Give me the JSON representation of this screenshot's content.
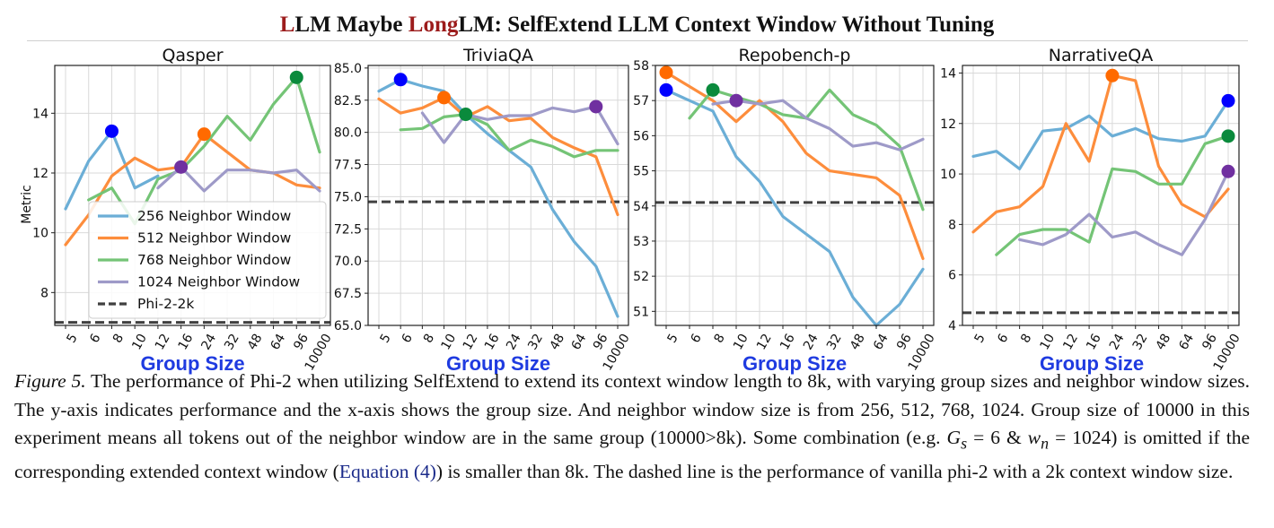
{
  "header": {
    "title_parts": [
      "L",
      "LM Maybe ",
      "Long",
      "LM: SelfExtend LLM Context Window Without Tuning"
    ]
  },
  "legend": {
    "entries": [
      "256 Neighbor Window",
      "512 Neighbor Window",
      "768 Neighbor Window",
      "1024 Neighbor Window",
      "Phi-2-2k"
    ]
  },
  "colors": {
    "w256": "#6baed6",
    "w512": "#fd8d3c",
    "w768": "#74c476",
    "w1024": "#9e9ac8",
    "baseline": "#404040",
    "dot_blue": "#0000ff",
    "dot_orange": "#ff6a00",
    "dot_green": "#0a8a3c",
    "dot_purple": "#7030a0",
    "xlabel": "#1f3be0"
  },
  "caption": {
    "fig_label": "Figure 5.",
    "text_1": " The performance of Phi-2 when utilizing SelfExtend to extend its context window length to 8k, with varying group sizes and neighbor window sizes. The y-axis indicates performance and the x-axis shows the group size. And neighbor window size is from 256, 512, 768, 1024. Group size of 10000 in this experiment means all tokens out of the neighbor window are in the same group (10000>8k). Some combination (e.g. ",
    "gs": "G",
    "gs_sub": "s",
    "mid": " = 6 & ",
    "wn": "w",
    "wn_sub": "n",
    "text_2": " = 1024) is omitted if the corresponding extended context window (",
    "eq_ref": "Equation (4)",
    "text_3": ") is smaller than 8k. The dashed line is the performance of vanilla phi-2 with a 2k context window size."
  },
  "chart_data": [
    {
      "type": "line",
      "title": "Qasper",
      "xlabel": "Group Size",
      "ylabel": "Metric",
      "categories": [
        "5",
        "6",
        "8",
        "10",
        "12",
        "16",
        "24",
        "32",
        "48",
        "64",
        "96",
        "10000"
      ],
      "ylim": [
        6.9,
        15.6
      ],
      "yticks": [
        8,
        10,
        12,
        14
      ],
      "ytick_labels": [
        "8",
        "10",
        "12",
        "14"
      ],
      "baseline": 7.0,
      "legend": "lower-left",
      "grid": true,
      "series": [
        {
          "name": "256 Neighbor Window",
          "values": [
            10.8,
            12.4,
            13.4,
            11.5,
            11.9,
            null,
            null,
            null,
            null,
            null,
            null,
            null
          ],
          "best_index": 2
        },
        {
          "name": "512 Neighbor Window",
          "values": [
            9.6,
            10.6,
            11.9,
            12.5,
            12.1,
            12.2,
            13.3,
            12.7,
            12.1,
            12.0,
            11.6,
            11.5
          ],
          "best_index": 6
        },
        {
          "name": "768 Neighbor Window",
          "values": [
            null,
            11.1,
            11.5,
            10.3,
            11.8,
            12.1,
            12.9,
            13.9,
            13.1,
            14.3,
            15.2,
            12.7
          ],
          "best_index": 10
        },
        {
          "name": "1024 Neighbor Window",
          "values": [
            null,
            null,
            null,
            null,
            11.5,
            12.2,
            11.4,
            12.1,
            12.1,
            12.0,
            12.1,
            11.4
          ],
          "best_index": 5
        }
      ]
    },
    {
      "type": "line",
      "title": "TriviaQA",
      "categories": [
        "5",
        "6",
        "8",
        "10",
        "12",
        "16",
        "24",
        "32",
        "48",
        "64",
        "96",
        "10000"
      ],
      "ylim": [
        65.0,
        85.2
      ],
      "yticks": [
        65.0,
        67.5,
        70.0,
        72.5,
        75.0,
        77.5,
        80.0,
        82.5,
        85.0
      ],
      "ytick_labels": [
        "65.0",
        "67.5",
        "70.0",
        "72.5",
        "75.0",
        "77.5",
        "80.0",
        "82.5",
        "85.0"
      ],
      "baseline": 74.6,
      "grid": true,
      "series": [
        {
          "name": "256 Neighbor Window",
          "values": [
            83.2,
            84.1,
            83.6,
            83.2,
            81.4,
            79.9,
            78.6,
            77.3,
            74.0,
            71.5,
            69.6,
            65.7
          ],
          "best_index": 1
        },
        {
          "name": "512 Neighbor Window",
          "values": [
            82.6,
            81.5,
            81.9,
            82.7,
            81.2,
            82.0,
            80.9,
            81.1,
            79.6,
            78.8,
            78.1,
            73.6
          ],
          "best_index": 3
        },
        {
          "name": "768 Neighbor Window",
          "values": [
            null,
            80.2,
            80.3,
            81.2,
            81.4,
            80.6,
            78.6,
            79.4,
            78.9,
            78.1,
            78.6,
            78.6
          ],
          "best_index": 4
        },
        {
          "name": "1024 Neighbor Window",
          "values": [
            null,
            null,
            81.5,
            79.2,
            81.4,
            81.0,
            81.3,
            81.3,
            81.9,
            81.6,
            82.0,
            79.1
          ],
          "best_index": 10
        }
      ]
    },
    {
      "type": "line",
      "title": "Repobench-p",
      "categories": [
        "5",
        "6",
        "8",
        "10",
        "12",
        "16",
        "24",
        "32",
        "48",
        "64",
        "96",
        "10000"
      ],
      "ylim": [
        50.6,
        58.0
      ],
      "yticks": [
        51,
        52,
        53,
        54,
        55,
        56,
        57,
        58
      ],
      "ytick_labels": [
        "51",
        "52",
        "53",
        "54",
        "55",
        "56",
        "57",
        "58"
      ],
      "baseline": 54.1,
      "grid": true,
      "series": [
        {
          "name": "256 Neighbor Window",
          "values": [
            57.3,
            57.0,
            56.7,
            55.4,
            54.7,
            53.7,
            53.2,
            52.7,
            51.4,
            50.6,
            51.2,
            52.2
          ],
          "best_index": 0
        },
        {
          "name": "512 Neighbor Window",
          "values": [
            57.8,
            57.4,
            57.0,
            56.4,
            57.0,
            56.4,
            55.5,
            55.0,
            54.9,
            54.8,
            54.3,
            52.5
          ],
          "best_index": 0
        },
        {
          "name": "768 Neighbor Window",
          "values": [
            null,
            56.5,
            57.3,
            57.1,
            56.9,
            56.6,
            56.5,
            57.3,
            56.6,
            56.3,
            55.7,
            53.9
          ],
          "best_index": 2
        },
        {
          "name": "1024 Neighbor Window",
          "values": [
            null,
            null,
            56.9,
            57.0,
            56.9,
            57.0,
            56.5,
            56.2,
            55.7,
            55.8,
            55.6,
            55.9
          ],
          "best_index": 3
        }
      ]
    },
    {
      "type": "line",
      "title": "NarrativeQA",
      "categories": [
        "5",
        "6",
        "8",
        "10",
        "12",
        "16",
        "24",
        "32",
        "48",
        "64",
        "96",
        "10000"
      ],
      "ylim": [
        4.0,
        14.3
      ],
      "yticks": [
        4,
        6,
        8,
        10,
        12,
        14
      ],
      "ytick_labels": [
        "4",
        "6",
        "8",
        "10",
        "12",
        "14"
      ],
      "baseline": 4.5,
      "grid": true,
      "series": [
        {
          "name": "256 Neighbor Window",
          "values": [
            10.7,
            10.9,
            10.2,
            11.7,
            11.8,
            12.3,
            11.5,
            11.8,
            11.4,
            11.3,
            11.5,
            12.9
          ],
          "best_index": 11
        },
        {
          "name": "512 Neighbor Window",
          "values": [
            7.7,
            8.5,
            8.7,
            9.5,
            12.0,
            10.5,
            13.9,
            13.7,
            10.3,
            8.8,
            8.3,
            9.4
          ],
          "best_index": 6
        },
        {
          "name": "768 Neighbor Window",
          "values": [
            null,
            6.8,
            7.6,
            7.8,
            7.8,
            7.3,
            10.2,
            10.1,
            9.6,
            9.6,
            11.2,
            11.5
          ],
          "best_index": 11
        },
        {
          "name": "1024 Neighbor Window",
          "values": [
            null,
            null,
            7.4,
            7.2,
            7.6,
            8.4,
            7.5,
            7.7,
            7.2,
            6.8,
            8.2,
            10.1
          ],
          "best_index": 11
        }
      ]
    }
  ]
}
